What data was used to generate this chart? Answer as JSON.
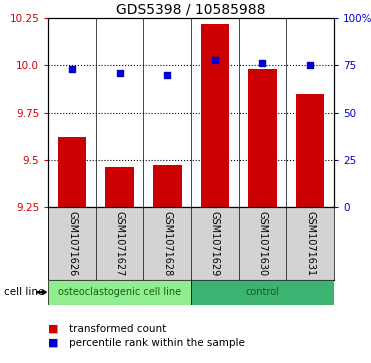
{
  "title": "GDS5398 / 10585988",
  "samples": [
    "GSM1071626",
    "GSM1071627",
    "GSM1071628",
    "GSM1071629",
    "GSM1071630",
    "GSM1071631"
  ],
  "bar_values": [
    9.62,
    9.46,
    9.47,
    10.22,
    9.98,
    9.85
  ],
  "percentile_values": [
    73,
    71,
    70,
    78,
    76,
    75
  ],
  "bar_color": "#cc0000",
  "percentile_color": "#0000cc",
  "ylim_left": [
    9.25,
    10.25
  ],
  "ylim_right": [
    0,
    100
  ],
  "yticks_left": [
    9.25,
    9.5,
    9.75,
    10.0,
    10.25
  ],
  "yticks_right": [
    0,
    25,
    50,
    75,
    100
  ],
  "ytick_labels_right": [
    "0",
    "25",
    "50",
    "75",
    "100%"
  ],
  "groups": [
    {
      "label": "osteoclastogenic cell line",
      "start": 0,
      "end": 3,
      "color": "#90ee90"
    },
    {
      "label": "control",
      "start": 3,
      "end": 6,
      "color": "#3cb371"
    }
  ],
  "legend_bar_label": "transformed count",
  "legend_pct_label": "percentile rank within the sample",
  "cell_line_label": "cell line",
  "background_plot": "#ffffff",
  "background_label_row": "#d3d3d3",
  "bar_bottom": 9.25,
  "dotted_line_color": "#000000",
  "dotted_lines": [
    9.5,
    9.75,
    10.0
  ],
  "title_fontsize": 10,
  "tick_fontsize": 7.5,
  "label_fontsize": 7.5,
  "sample_fontsize": 7,
  "group_fontsize": 7
}
